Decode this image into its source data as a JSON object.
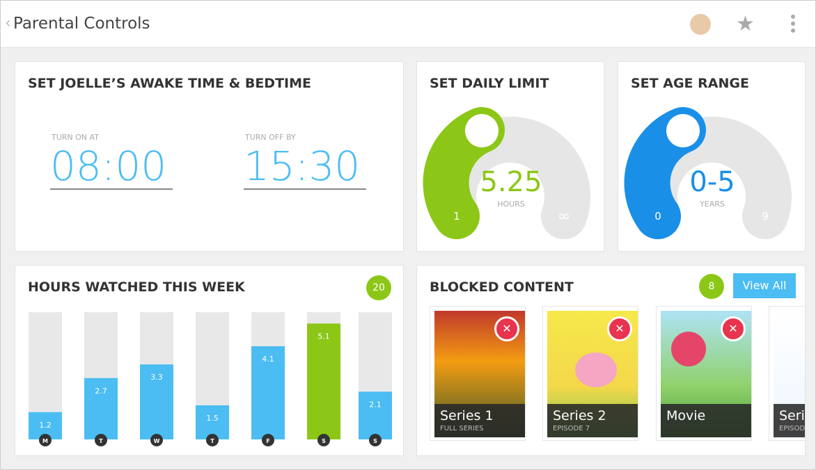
{
  "header": {
    "title": "Parental Controls"
  },
  "schedule": {
    "title": "SET JOELLE’S AWAKE TIME & BEDTIME",
    "on_label": "TURN ON AT",
    "on_time": "08:00",
    "off_label": "TURN OFF BY",
    "off_time": "15:30"
  },
  "daily_limit": {
    "title": "SET DAILY LIMIT",
    "value": "5.25",
    "unit": "HOURS",
    "min": "1",
    "max": "∞"
  },
  "age_range": {
    "title": "SET AGE RANGE",
    "value": "0-5",
    "unit": "YEARS",
    "min": "0",
    "max": "9"
  },
  "chart_data": {
    "type": "bar",
    "title": "HOURS WATCHED THIS WEEK",
    "total": "20",
    "categories": [
      "M",
      "T",
      "W",
      "T",
      "F",
      "S",
      "S"
    ],
    "values": [
      1.2,
      2.7,
      3.3,
      1.5,
      4.1,
      5.1,
      2.1
    ],
    "colors": [
      "#4bbdf3",
      "#4bbdf3",
      "#4bbdf3",
      "#4bbdf3",
      "#4bbdf3",
      "#8cc717",
      "#4bbdf3"
    ],
    "ylim": [
      0,
      5.6
    ]
  },
  "blocked": {
    "title": "BLOCKED CONTENT",
    "count": "8",
    "button": "View All",
    "items": [
      {
        "title": "Series 1",
        "subtitle": "FULL SERIES"
      },
      {
        "title": "Series 2",
        "subtitle": "EPISODE 7"
      },
      {
        "title": "Movie"
      },
      {
        "title": "Series",
        "subtitle": "EPISODE"
      }
    ]
  }
}
